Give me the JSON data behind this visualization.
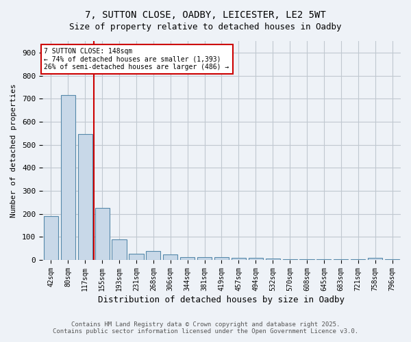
{
  "title_line1": "7, SUTTON CLOSE, OADBY, LEICESTER, LE2 5WT",
  "title_line2": "Size of property relative to detached houses in Oadby",
  "xlabel": "Distribution of detached houses by size in Oadby",
  "ylabel": "Number of detached properties",
  "bar_labels": [
    "42sqm",
    "80sqm",
    "117sqm",
    "155sqm",
    "193sqm",
    "231sqm",
    "268sqm",
    "306sqm",
    "344sqm",
    "381sqm",
    "419sqm",
    "457sqm",
    "494sqm",
    "532sqm",
    "570sqm",
    "608sqm",
    "645sqm",
    "683sqm",
    "721sqm",
    "758sqm",
    "796sqm"
  ],
  "bar_values": [
    190,
    715,
    545,
    225,
    90,
    28,
    40,
    25,
    12,
    12,
    12,
    8,
    8,
    5,
    3,
    3,
    3,
    3,
    3,
    8,
    3
  ],
  "bar_color": "#c8d8e8",
  "bar_edge_color": "#5588aa",
  "grid_color": "#c0c8d0",
  "property_bar_index": 3,
  "property_line_color": "#cc0000",
  "annotation_title": "7 SUTTON CLOSE: 148sqm",
  "annotation_line1": "← 74% of detached houses are smaller (1,393)",
  "annotation_line2": "26% of semi-detached houses are larger (486) →",
  "annotation_box_edge_color": "#cc0000",
  "ylim": [
    0,
    950
  ],
  "yticks": [
    0,
    100,
    200,
    300,
    400,
    500,
    600,
    700,
    800,
    900
  ],
  "footer_line1": "Contains HM Land Registry data © Crown copyright and database right 2025.",
  "footer_line2": "Contains public sector information licensed under the Open Government Licence v3.0.",
  "background_color": "#eef2f7",
  "plot_bg_color": "#eef2f7"
}
